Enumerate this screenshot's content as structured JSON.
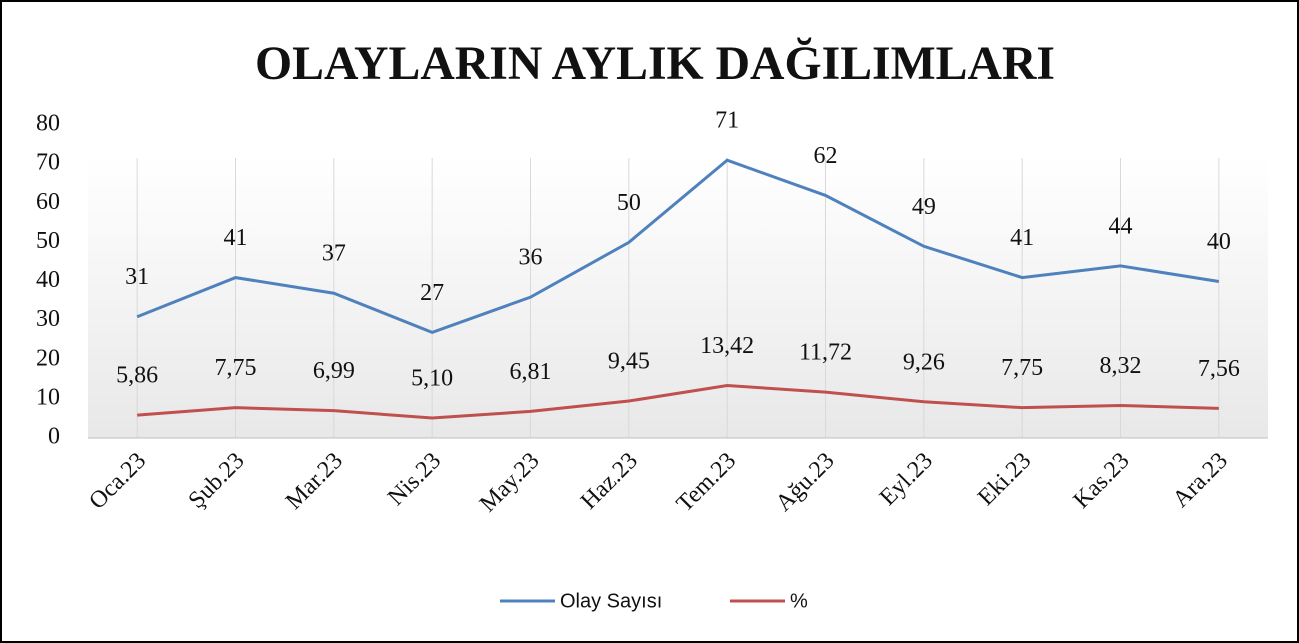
{
  "chart_data": {
    "type": "line",
    "title": "OLAYLARIN AYLIK DAĞILIMLARI",
    "categories": [
      "Oca.23",
      "Şub.23",
      "Mar.23",
      "Nis.23",
      "May.23",
      "Haz.23",
      "Tem.23",
      "Ağu.23",
      "Eyl.23",
      "Eki.23",
      "Kas.23",
      "Ara.23"
    ],
    "series": [
      {
        "name": "Olay Sayısı",
        "color": "#4f81bd",
        "values": [
          31,
          41,
          37,
          27,
          36,
          50,
          71,
          62,
          49,
          41,
          44,
          40
        ]
      },
      {
        "name": "%",
        "color": "#c0504d",
        "values": [
          5.86,
          7.75,
          6.99,
          5.1,
          6.81,
          9.45,
          13.42,
          11.72,
          9.26,
          7.75,
          8.32,
          7.56
        ],
        "value_labels": [
          "5,86",
          "7,75",
          "6,99",
          "5,10",
          "6,81",
          "9,45",
          "13,42",
          "11,72",
          "9,26",
          "7,75",
          "8,32",
          "7,56"
        ]
      }
    ],
    "ylim": [
      0,
      80
    ],
    "yticks": [
      0,
      10,
      20,
      30,
      40,
      50,
      60,
      70,
      80
    ],
    "legend": "bottom"
  }
}
